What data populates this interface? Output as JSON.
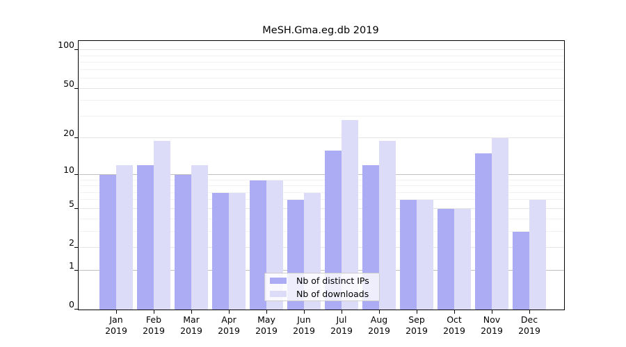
{
  "chart_data": {
    "type": "bar",
    "title": "MeSH.Gma.eg.db 2019",
    "categories": [
      "Jan",
      "Feb",
      "Mar",
      "Apr",
      "May",
      "Jun",
      "Jul",
      "Aug",
      "Sep",
      "Oct",
      "Nov",
      "Dec"
    ],
    "year_label": "2019",
    "series": [
      {
        "name": "Nb of distinct IPs",
        "color": "#acacf4",
        "values": [
          10,
          12,
          10,
          7,
          9,
          6,
          16,
          12,
          6,
          5,
          15,
          3
        ]
      },
      {
        "name": "Nb of downloads",
        "color": "#dcdcf8",
        "values": [
          12,
          19,
          12,
          7,
          9,
          7,
          28,
          19,
          6,
          5,
          20,
          6
        ]
      }
    ],
    "yscale": "log1p",
    "yticks": [
      100,
      50,
      20,
      10,
      5,
      2,
      1,
      0
    ],
    "decade_lines": [
      1,
      10
    ],
    "minor_gridlines": [
      3,
      4,
      6,
      7,
      8,
      9,
      30,
      40,
      60,
      70,
      80,
      90
    ],
    "ylim": [
      0,
      118
    ],
    "grid": true,
    "legend_position": "bottom-center",
    "colors": {
      "axis": "#000000",
      "grid_minor": "#f2f2f2",
      "grid_labeled": "#e4e4e4",
      "grid_decade": "#c0c0c0"
    }
  }
}
